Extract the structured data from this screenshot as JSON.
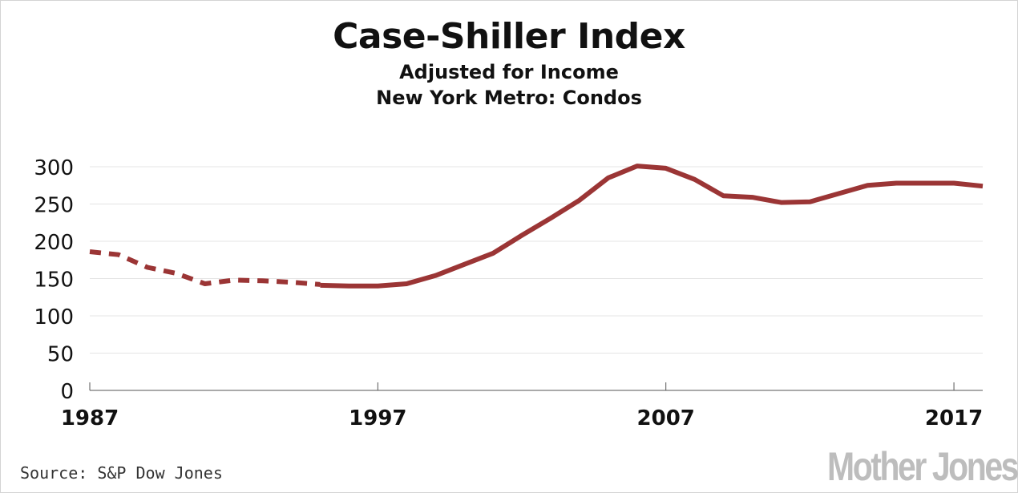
{
  "chart_data": {
    "type": "line",
    "title": "Case-Shiller Index",
    "subtitle_1": "Adjusted for Income",
    "subtitle_2": "New York Metro: Condos",
    "xlabel": "",
    "ylabel": "",
    "xlim": [
      1987,
      2018
    ],
    "ylim": [
      0,
      300
    ],
    "x_ticks": [
      1987,
      1997,
      2007,
      2017
    ],
    "y_ticks": [
      0,
      50,
      100,
      150,
      200,
      250,
      300
    ],
    "grid": true,
    "series": [
      {
        "style": "dashed",
        "color": "#9b3535",
        "x": [
          1987,
          1988,
          1989,
          1990,
          1991,
          1992,
          1993,
          1994,
          1995
        ],
        "values": [
          186,
          182,
          165,
          157,
          143,
          148,
          147,
          145,
          142
        ]
      },
      {
        "style": "solid",
        "color": "#9b3535",
        "x": [
          1995,
          1996,
          1997,
          1998,
          1999,
          2000,
          2001,
          2002,
          2003,
          2004,
          2005,
          2006,
          2007,
          2008,
          2009,
          2010,
          2011,
          2012,
          2013,
          2014,
          2015,
          2016,
          2017,
          2018
        ],
        "values": [
          141,
          140,
          140,
          143,
          154,
          169,
          184,
          208,
          231,
          255,
          285,
          301,
          298,
          283,
          261,
          259,
          252,
          253,
          264,
          275,
          278,
          278,
          278,
          274
        ]
      }
    ]
  },
  "footer": {
    "source": "Source: S&P Dow Jones",
    "logo": "Mother Jones"
  }
}
